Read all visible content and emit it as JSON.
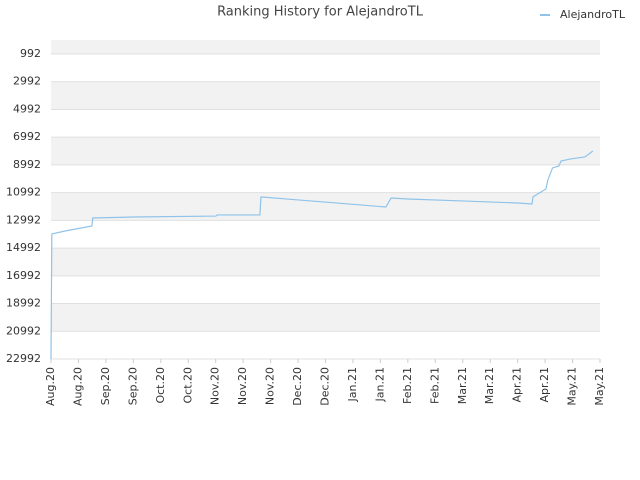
{
  "chart_data": {
    "type": "line",
    "title": "Ranking History for AlejandroTL",
    "x": [
      0,
      0.03,
      0.51,
      1.49,
      1.52,
      2.99,
      6.01,
      6.05,
      7.61,
      7.65,
      9.0,
      9.98,
      12.2,
      12.39,
      13.0,
      14.97,
      17.01,
      17.52,
      17.56,
      18.03,
      18.1,
      18.27,
      18.5,
      18.58,
      18.9,
      19.45,
      19.74
    ],
    "series": [
      {
        "name": "AlejandroTL",
        "color": "#8fc3ea",
        "values": [
          22990,
          13970,
          13760,
          13400,
          12820,
          12750,
          12680,
          12600,
          12600,
          11300,
          11520,
          11670,
          12030,
          11380,
          11450,
          11590,
          11740,
          11810,
          11300,
          10730,
          10080,
          9210,
          9070,
          8710,
          8570,
          8420,
          7990
        ]
      }
    ],
    "xlim": [
      0,
      20
    ],
    "xticks": [
      {
        "value": 0,
        "label": "Aug.20"
      },
      {
        "value": 1,
        "label": "Aug.20"
      },
      {
        "value": 2,
        "label": "Sep.20"
      },
      {
        "value": 3,
        "label": "Sep.20"
      },
      {
        "value": 4,
        "label": "Oct.20"
      },
      {
        "value": 5,
        "label": "Oct.20"
      },
      {
        "value": 6,
        "label": "Nov.20"
      },
      {
        "value": 7,
        "label": "Nov.20"
      },
      {
        "value": 8,
        "label": "Nov.20"
      },
      {
        "value": 9,
        "label": "Dec.20"
      },
      {
        "value": 10,
        "label": "Dec.20"
      },
      {
        "value": 11,
        "label": "Jan.21"
      },
      {
        "value": 12,
        "label": "Jan.21"
      },
      {
        "value": 13,
        "label": "Feb.21"
      },
      {
        "value": 14,
        "label": "Feb.21"
      },
      {
        "value": 15,
        "label": "Mar.21"
      },
      {
        "value": 16,
        "label": "Mar.21"
      },
      {
        "value": 17,
        "label": "Apr.21"
      },
      {
        "value": 18,
        "label": "Apr.21"
      },
      {
        "value": 19,
        "label": "May.21"
      },
      {
        "value": 20,
        "label": "May.21"
      }
    ],
    "ylim": [
      -18,
      22992
    ],
    "y_reversed": true,
    "yticks": [
      992,
      2992,
      4992,
      6992,
      8992,
      10992,
      12992,
      14992,
      16992,
      18992,
      20992,
      22992
    ],
    "grid": true,
    "legend": "top-right"
  }
}
